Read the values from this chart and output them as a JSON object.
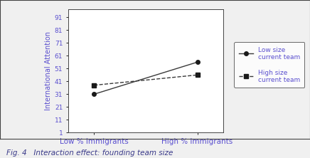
{
  "x_labels": [
    "Low % Immigrants",
    "High % Immigrants"
  ],
  "x_positions": [
    0,
    1
  ],
  "low_size_values": [
    31,
    56
  ],
  "high_size_values": [
    38,
    46
  ],
  "yticks": [
    1,
    11,
    21,
    31,
    41,
    51,
    61,
    71,
    81,
    91
  ],
  "ylim": [
    1,
    97
  ],
  "xlim": [
    -0.25,
    1.25
  ],
  "ylabel": "International Attention",
  "text_color": "#5a4fcf",
  "line_color": "#3a3a3a",
  "marker_color": "#1a1a1a",
  "legend_label_low": "Low size\ncurrent team",
  "legend_label_high": "High size\ncurrent team",
  "caption": "Fig. 4   Interaction effect: founding team size",
  "caption_color": "#3a3a8a",
  "caption_fontsize": 7.5,
  "ylabel_fontsize": 7,
  "tick_fontsize": 6.5,
  "legend_fontsize": 6.5,
  "xlabel_fontsize": 7.5,
  "outer_bg": "#f0f0f0",
  "inner_bg": "#ffffff",
  "border_color": "#444444"
}
